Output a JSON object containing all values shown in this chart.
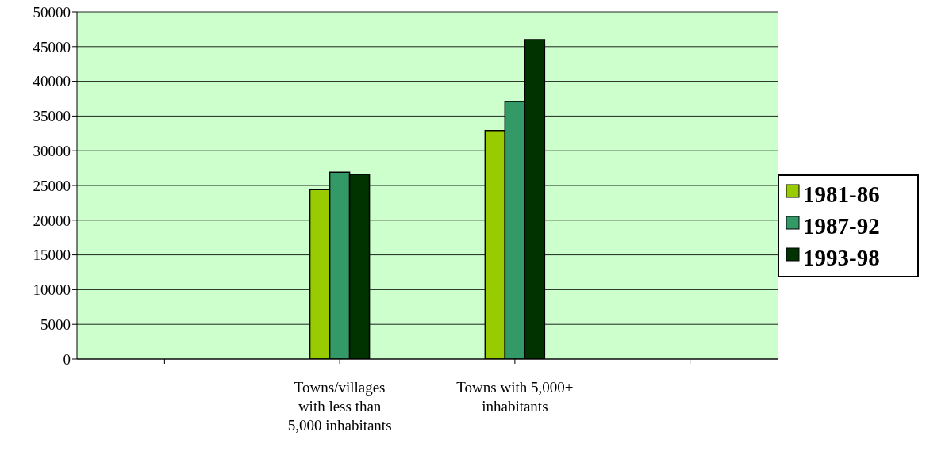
{
  "chart_data": {
    "type": "bar",
    "categories": [
      null,
      "Towns/villages with less than 5,000 inhabitants",
      "Towns with 5,000+ inhabitants",
      null
    ],
    "series": [
      {
        "name": "1981-86",
        "color": "#99cc00",
        "values": [
          null,
          24400,
          32900,
          null
        ]
      },
      {
        "name": "1987-92",
        "color": "#339966",
        "values": [
          null,
          26900,
          37100,
          null
        ]
      },
      {
        "name": "1993-98",
        "color": "#003300",
        "values": [
          null,
          26600,
          46000,
          null
        ]
      }
    ],
    "ylim": [
      0,
      50000
    ],
    "yticks": [
      0,
      5000,
      10000,
      15000,
      20000,
      25000,
      30000,
      35000,
      40000,
      45000,
      50000
    ],
    "grid": "y",
    "legend": "right"
  }
}
